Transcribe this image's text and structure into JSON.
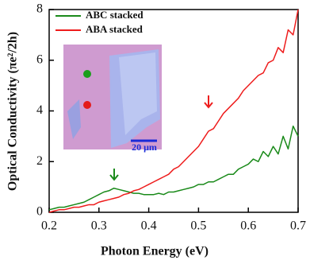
{
  "chart_data": {
    "type": "line",
    "xlabel": "Photon Energy (eV)",
    "ylabel": "Optical Conductivity (πe²/2h)",
    "x": [
      0.2,
      0.21,
      0.22,
      0.23,
      0.24,
      0.25,
      0.26,
      0.27,
      0.28,
      0.29,
      0.3,
      0.31,
      0.32,
      0.33,
      0.34,
      0.35,
      0.36,
      0.37,
      0.38,
      0.39,
      0.4,
      0.41,
      0.42,
      0.43,
      0.44,
      0.45,
      0.46,
      0.47,
      0.48,
      0.49,
      0.5,
      0.51,
      0.52,
      0.53,
      0.54,
      0.55,
      0.56,
      0.57,
      0.58,
      0.59,
      0.6,
      0.61,
      0.62,
      0.63,
      0.64,
      0.65,
      0.66,
      0.67,
      0.68,
      0.69,
      0.7
    ],
    "series": [
      {
        "name": "ABC stacked",
        "color": "#1a8a1a",
        "values": [
          0.1,
          0.15,
          0.2,
          0.2,
          0.25,
          0.3,
          0.35,
          0.4,
          0.5,
          0.6,
          0.7,
          0.8,
          0.85,
          0.95,
          0.9,
          0.85,
          0.8,
          0.75,
          0.75,
          0.7,
          0.7,
          0.7,
          0.75,
          0.7,
          0.8,
          0.8,
          0.85,
          0.9,
          0.95,
          1.0,
          1.1,
          1.1,
          1.2,
          1.2,
          1.3,
          1.4,
          1.5,
          1.5,
          1.7,
          1.8,
          1.9,
          2.1,
          2.0,
          2.4,
          2.2,
          2.6,
          2.3,
          3.0,
          2.5,
          3.4,
          3.0
        ]
      },
      {
        "name": "ABA stacked",
        "color": "#ee1c1c",
        "values": [
          0.0,
          0.05,
          0.1,
          0.1,
          0.15,
          0.2,
          0.2,
          0.25,
          0.3,
          0.3,
          0.4,
          0.45,
          0.5,
          0.55,
          0.6,
          0.7,
          0.75,
          0.85,
          0.9,
          1.0,
          1.1,
          1.2,
          1.3,
          1.4,
          1.5,
          1.7,
          1.8,
          2.0,
          2.2,
          2.4,
          2.6,
          2.9,
          3.2,
          3.3,
          3.6,
          3.9,
          4.1,
          4.3,
          4.5,
          4.8,
          5.0,
          5.2,
          5.4,
          5.5,
          5.9,
          6.0,
          6.5,
          6.3,
          7.2,
          7.0,
          8.0
        ]
      }
    ],
    "xlim": [
      0.2,
      0.7
    ],
    "xticks": [
      0.2,
      0.3,
      0.4,
      0.5,
      0.6,
      0.7
    ],
    "ylim": [
      0,
      8
    ],
    "yticks": [
      0,
      2,
      4,
      6,
      8
    ],
    "legend": "upper left",
    "inset_scale_label": "20 μm"
  }
}
